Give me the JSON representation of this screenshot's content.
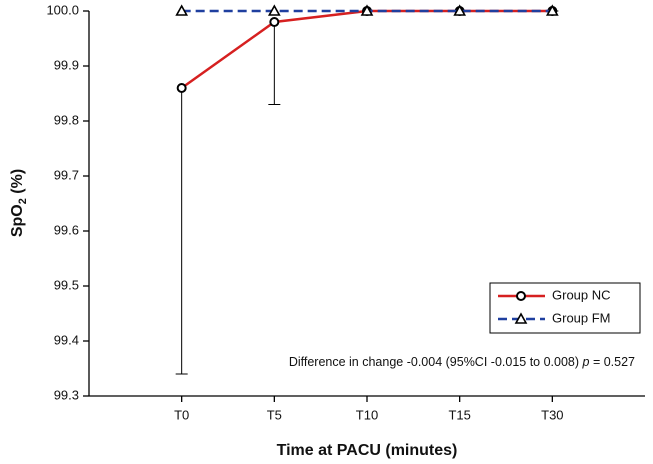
{
  "chart_data": {
    "type": "line",
    "ylabel": [
      "SpO",
      "2",
      " (%)"
    ],
    "xlabel": "Time at PACU (minutes)",
    "categories": [
      "T0",
      "T5",
      "T10",
      "T15",
      "T30"
    ],
    "series": [
      {
        "name": "Group NC",
        "color": "#d62020",
        "dash": "solid",
        "marker": "circle",
        "values": [
          99.86,
          99.98,
          100,
          100,
          100
        ],
        "errors": [
          0.52,
          0.15,
          0,
          0,
          0
        ]
      },
      {
        "name": "Group FM",
        "color": "#1f3f9f",
        "dash": "dashed",
        "marker": "triangle",
        "values": [
          100,
          100,
          100,
          100,
          100
        ]
      }
    ],
    "ylim": [
      99.3,
      100
    ],
    "yticks": [
      99.3,
      99.4,
      99.5,
      99.6,
      99.7,
      99.8,
      99.9,
      {
        "value": 100,
        "label": "100.0"
      }
    ],
    "legend": "lower right",
    "annotation": [
      "Difference in change -0.004 (95%CI -0.015 to 0.008) ",
      "p",
      " = 0.527"
    ]
  }
}
